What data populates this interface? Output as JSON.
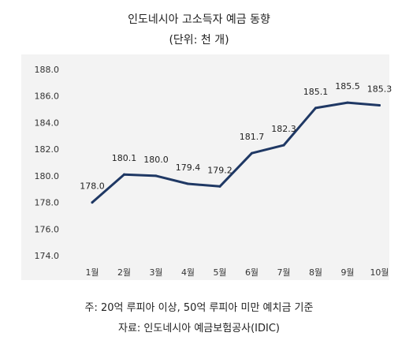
{
  "chart_data": {
    "type": "line",
    "title": "인도네시아 고소득자 예금 동향",
    "subtitle": "(단위: 천 개)",
    "categories": [
      "1월",
      "2월",
      "3월",
      "4월",
      "5월",
      "6월",
      "7월",
      "8월",
      "9월",
      "10월"
    ],
    "series": [
      {
        "values": [
          178.0,
          180.1,
          180.0,
          179.4,
          179.2,
          181.7,
          182.3,
          185.1,
          185.5,
          185.3
        ]
      }
    ],
    "data_labels": [
      "178.0",
      "180.1",
      "180.0",
      "179.4",
      "179.2",
      "181.7",
      "182.3",
      "185.1",
      "185.5",
      "185.3"
    ],
    "ylim": [
      174.0,
      188.0
    ],
    "yticks": [
      174.0,
      176.0,
      178.0,
      180.0,
      182.0,
      184.0,
      186.0,
      188.0
    ],
    "ytick_labels": [
      "174.0",
      "176.0",
      "178.0",
      "180.0",
      "182.0",
      "184.0",
      "186.0",
      "188.0"
    ],
    "line_color": "#1f3864",
    "grid": false,
    "legend": "none"
  },
  "notes": {
    "line1": "주: 20억 루피아 이상, 50억 루피아 미만 예치금 기준",
    "line2": "자료: 인도네시아 예금보험공사(IDIC)"
  }
}
